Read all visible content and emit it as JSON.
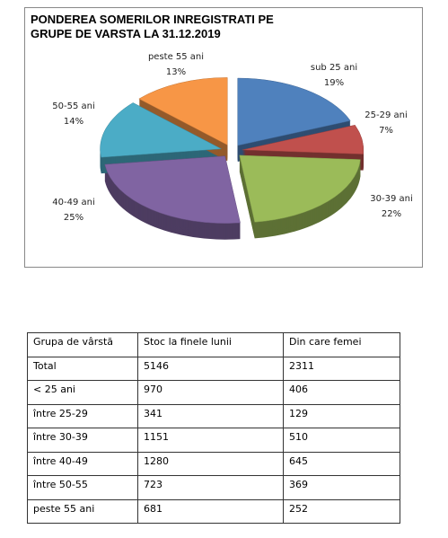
{
  "chart_data": {
    "type": "pie",
    "title": "PONDEREA SOMERILOR INREGISTRATI PE GRUPE DE VARSTA LA 31.12.2019",
    "categories": [
      "sub 25 ani",
      "25-29 ani",
      "30-39 ani",
      "40-49 ani",
      "50-55 ani",
      "peste 55 ani"
    ],
    "values": [
      19,
      7,
      22,
      25,
      14,
      13
    ],
    "value_labels": [
      "19%",
      "7%",
      "22%",
      "25%",
      "14%",
      "13%"
    ],
    "colors": [
      "#4f81bd",
      "#c0504d",
      "#9bbb59",
      "#8064a2",
      "#4bacc6",
      "#f79646"
    ]
  },
  "table": {
    "header": [
      "Grupa de vârstă",
      "Stoc la finele lunii",
      "Din care femei"
    ],
    "rows": [
      [
        "Total",
        5146,
        2311
      ],
      [
        "< 25 ani",
        970,
        406
      ],
      [
        "între 25-29",
        341,
        129
      ],
      [
        "între 30-39",
        1151,
        510
      ],
      [
        "între 40-49",
        1280,
        645
      ],
      [
        "între 50-55",
        723,
        369
      ],
      [
        "peste 55 ani",
        681,
        252
      ]
    ]
  }
}
